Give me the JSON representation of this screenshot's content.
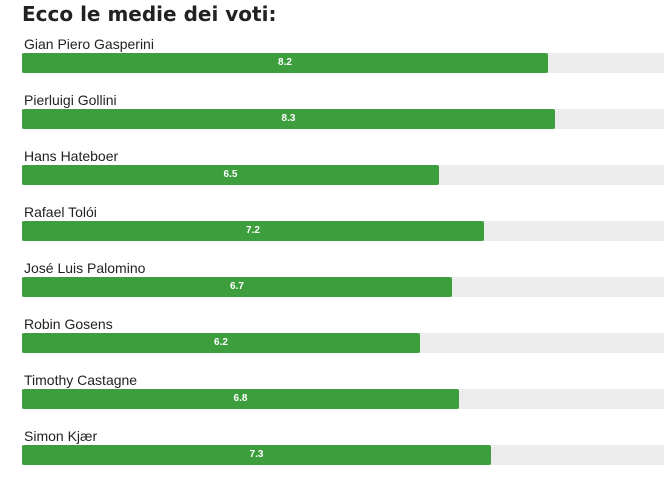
{
  "chart_data": {
    "type": "bar",
    "orientation": "horizontal",
    "title": "Ecco le medie dei voti:",
    "xlim": [
      0,
      10
    ],
    "categories": [
      "Gian Piero Gasperini",
      "Pierluigi Gollini",
      "Hans Hateboer",
      "Rafael Tolói",
      "José Luis Palomino",
      "Robin Gosens",
      "Timothy Castagne",
      "Simon Kjær"
    ],
    "values": [
      8.2,
      8.3,
      6.5,
      7.2,
      6.7,
      6.2,
      6.8,
      7.3
    ],
    "value_labels": [
      "8.2",
      "8.3",
      "6.5",
      "7.2",
      "6.7",
      "6.2",
      "6.8",
      "7.3"
    ]
  },
  "colors": {
    "bar": "#3d9e3d",
    "track": "#ececec",
    "value_text": "#ffffff"
  }
}
